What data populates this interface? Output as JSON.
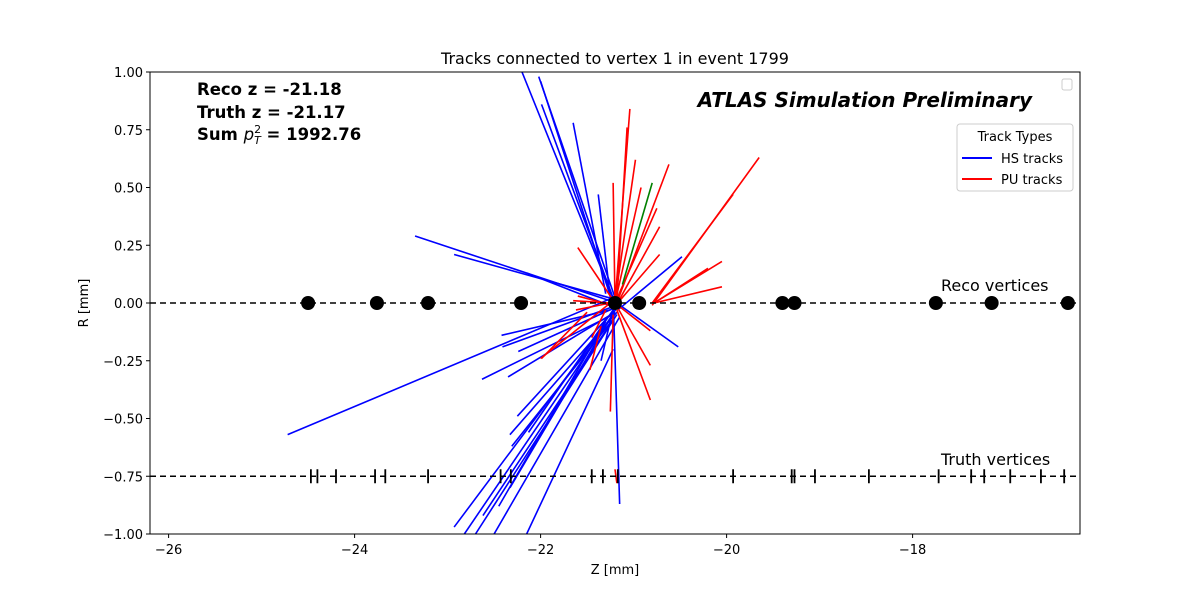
{
  "chart_data": {
    "type": "line",
    "title": "Tracks connected to vertex 1 in event 1799",
    "xlabel": "Z [mm]",
    "ylabel": "R [mm]",
    "xlim": [
      -26.2,
      -16.2
    ],
    "ylim": [
      -1.0,
      1.0
    ],
    "xticks": [
      -26,
      -24,
      -22,
      -20,
      -18
    ],
    "yticks": [
      -1.0,
      -0.75,
      -0.5,
      -0.25,
      0.0,
      0.25,
      0.5,
      0.75,
      1.0
    ],
    "xtick_labels": [
      "−26",
      "−24",
      "−22",
      "−20",
      "−18"
    ],
    "ytick_labels": [
      "−1.00",
      "−0.75",
      "−0.50",
      "−0.25",
      "0.00",
      "0.25",
      "0.50",
      "0.75",
      "1.00"
    ],
    "grid": false,
    "info": {
      "reco_z": "Reco z = -21.18",
      "truth_z": "Truth z = -21.17",
      "sum_pt2_prefix": "Sum ",
      "sum_pt2_value": " = 1992.76"
    },
    "watermark": "ATLAS Simulation Preliminary",
    "reco_label": "Reco vertices",
    "truth_label": "Truth vertices",
    "reco_line_r": 0.0,
    "truth_line_r": -0.75,
    "reco_vertices_z": [
      -24.5,
      -23.76,
      -23.21,
      -22.21,
      -21.2,
      -20.94,
      -19.4,
      -19.27,
      -17.75,
      -17.15,
      -16.33
    ],
    "truth_vertices_z": [
      -24.47,
      -24.4,
      -24.2,
      -23.78,
      -23.67,
      -23.21,
      -22.43,
      -22.32,
      -21.45,
      -21.33,
      -21.17,
      -19.93,
      -19.3,
      -19.27,
      -19.05,
      -18.47,
      -17.72,
      -17.37,
      -17.23,
      -16.95,
      -16.62,
      -16.37
    ],
    "legend": {
      "title": "Track Types",
      "position": "upper right",
      "entries": [
        {
          "label": "HS tracks",
          "color": "#0000ff"
        },
        {
          "label": "PU tracks",
          "color": "#ff0000"
        }
      ]
    },
    "colors": {
      "hs": "#0000ff",
      "pu": "#ff0000",
      "other": "#008000",
      "vertex": "#000000"
    },
    "series": [
      {
        "type": "hs",
        "segments": [
          [
            -24.72,
            -0.57,
            -21.18,
            0.03
          ],
          [
            -23.35,
            0.29,
            -21.18,
            0.0
          ],
          [
            -22.93,
            0.21,
            -21.15,
            0.01
          ],
          [
            -22.15,
            0.13,
            -21.2,
            -0.02
          ],
          [
            -22.42,
            -0.14,
            -21.25,
            -0.03
          ],
          [
            -22.41,
            -0.19,
            -21.18,
            -0.01
          ],
          [
            -22.24,
            -0.21,
            -21.2,
            -0.02
          ],
          [
            -22.63,
            -0.33,
            -21.22,
            -0.05
          ],
          [
            -22.35,
            -0.32,
            -21.2,
            -0.04
          ],
          [
            -20.48,
            0.2,
            -21.17,
            -0.03
          ],
          [
            -20.52,
            -0.19,
            -21.18,
            0.0
          ],
          [
            -21.38,
            0.47,
            -21.25,
            0.02
          ],
          [
            -21.65,
            0.78,
            -21.3,
            0.04
          ],
          [
            -21.99,
            0.86,
            -21.2,
            0.0
          ],
          [
            -22.2,
            1.0,
            -21.22,
            0.02
          ],
          [
            -22.02,
            0.98,
            -21.18,
            0.0
          ],
          [
            -22.0,
            0.96,
            -21.25,
            0.03
          ],
          [
            -21.43,
            -0.18,
            -21.18,
            -0.02
          ],
          [
            -21.35,
            -0.25,
            -21.2,
            0.01
          ],
          [
            -22.25,
            -0.49,
            -21.25,
            -0.05
          ],
          [
            -22.33,
            -0.57,
            -21.18,
            -0.04
          ],
          [
            -22.31,
            -0.62,
            -21.2,
            -0.06
          ],
          [
            -22.13,
            -0.56,
            -21.22,
            -0.03
          ],
          [
            -22.33,
            -0.8,
            -21.3,
            -0.1
          ],
          [
            -22.45,
            -0.88,
            -21.3,
            -0.08
          ],
          [
            -22.62,
            -0.92,
            -21.25,
            -0.09
          ],
          [
            -22.93,
            -0.97,
            -21.22,
            -0.05
          ],
          [
            -22.82,
            -1.0,
            -21.2,
            -0.04
          ],
          [
            -22.7,
            -1.0,
            -21.18,
            -0.05
          ],
          [
            -22.5,
            -1.0,
            -21.15,
            -0.06
          ],
          [
            -22.15,
            -1.0,
            -21.22,
            -0.2
          ],
          [
            -21.15,
            -0.87,
            -21.22,
            0.02
          ]
        ]
      },
      {
        "type": "pu",
        "segments": [
          [
            -19.65,
            0.63,
            -20.8,
            -0.01
          ],
          [
            -19.93,
            0.47,
            -20.8,
            0.0
          ],
          [
            -20.05,
            0.18,
            -20.78,
            0.0
          ],
          [
            -20.2,
            0.15,
            -20.78,
            0.0
          ],
          [
            -20.05,
            0.07,
            -20.78,
            0.0
          ],
          [
            -20.72,
            0.33,
            -21.2,
            -0.02
          ],
          [
            -20.72,
            0.21,
            -21.15,
            0.01
          ],
          [
            -20.62,
            0.6,
            -21.2,
            -0.02
          ],
          [
            -20.75,
            0.41,
            -21.2,
            0.0
          ],
          [
            -20.98,
            0.62,
            -21.2,
            0.01
          ],
          [
            -20.92,
            0.5,
            -21.2,
            0.0
          ],
          [
            -21.04,
            0.84,
            -21.2,
            0.0
          ],
          [
            -21.07,
            0.76,
            -21.18,
            0.01
          ],
          [
            -21.22,
            0.52,
            -21.2,
            0.0
          ],
          [
            -21.6,
            0.24,
            -21.2,
            0.0
          ],
          [
            -21.65,
            0.01,
            -21.25,
            0.0
          ],
          [
            -21.6,
            0.03,
            -21.32,
            0.0
          ],
          [
            -22.0,
            -0.24,
            -21.25,
            0.0
          ],
          [
            -21.99,
            -0.24,
            -21.5,
            -0.04
          ],
          [
            -21.62,
            -0.03,
            -21.25,
            0.0
          ],
          [
            -21.45,
            -0.15,
            -21.3,
            -0.03
          ],
          [
            -21.47,
            -0.29,
            -21.35,
            -0.1
          ],
          [
            -21.25,
            -0.47,
            -21.22,
            -0.05
          ],
          [
            -20.82,
            -0.42,
            -21.18,
            -0.03
          ],
          [
            -20.82,
            -0.27,
            -21.2,
            0.0
          ],
          [
            -20.82,
            -0.12,
            -21.2,
            0.0
          ],
          [
            -21.18,
            -0.78,
            -21.2,
            -0.72
          ]
        ]
      },
      {
        "type": "other",
        "segments": [
          [
            -20.8,
            0.52,
            -21.12,
            0.08
          ]
        ]
      }
    ]
  }
}
